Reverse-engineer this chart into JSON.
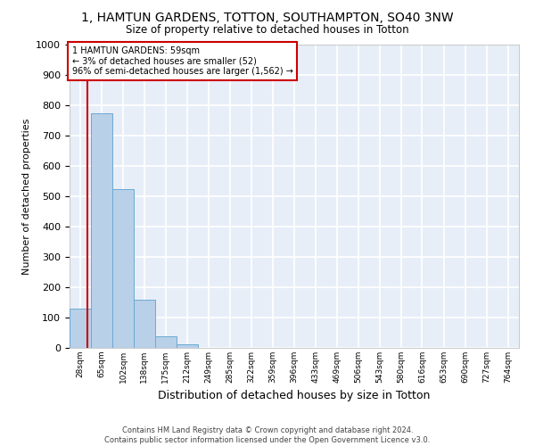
{
  "title": "1, HAMTUN GARDENS, TOTTON, SOUTHAMPTON, SO40 3NW",
  "subtitle": "Size of property relative to detached houses in Totton",
  "xlabel": "Distribution of detached houses by size in Totton",
  "ylabel": "Number of detached properties",
  "bar_color": "#b8d0e8",
  "bar_edge_color": "#6aaad4",
  "background_color": "#e8eef8",
  "grid_color": "#ffffff",
  "x_labels": [
    "28sqm",
    "65sqm",
    "102sqm",
    "138sqm",
    "175sqm",
    "212sqm",
    "249sqm",
    "285sqm",
    "322sqm",
    "359sqm",
    "396sqm",
    "433sqm",
    "469sqm",
    "506sqm",
    "543sqm",
    "580sqm",
    "616sqm",
    "653sqm",
    "690sqm",
    "727sqm",
    "764sqm"
  ],
  "bar_values": [
    130,
    775,
    525,
    158,
    37,
    13,
    0,
    0,
    0,
    0,
    0,
    0,
    0,
    0,
    0,
    0,
    0,
    0,
    0,
    0,
    0
  ],
  "bin_edges": [
    28,
    65,
    102,
    138,
    175,
    212,
    249,
    285,
    322,
    359,
    396,
    433,
    469,
    506,
    543,
    580,
    616,
    653,
    690,
    727,
    764
  ],
  "ylim": [
    0,
    1000
  ],
  "yticks": [
    0,
    100,
    200,
    300,
    400,
    500,
    600,
    700,
    800,
    900,
    1000
  ],
  "vline_x": 59,
  "annotation_text": "1 HAMTUN GARDENS: 59sqm\n← 3% of detached houses are smaller (52)\n96% of semi-detached houses are larger (1,562) →",
  "annotation_box_color": "#ffffff",
  "annotation_box_edge_color": "#cc0000",
  "vline_color": "#cc0000",
  "footer_line1": "Contains HM Land Registry data © Crown copyright and database right 2024.",
  "footer_line2": "Contains public sector information licensed under the Open Government Licence v3.0.",
  "fig_bg": "#ffffff"
}
